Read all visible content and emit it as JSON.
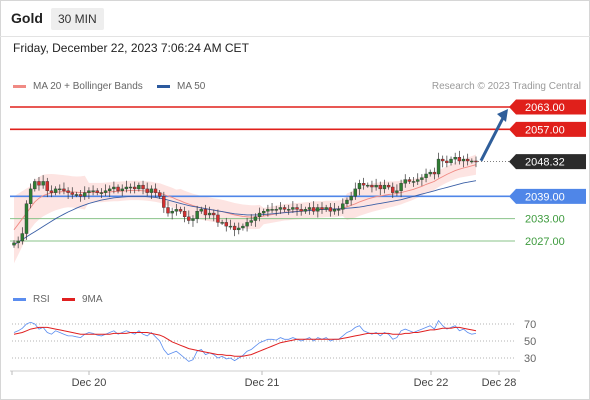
{
  "header": {
    "instrument": "Gold",
    "timeframe": "30 MIN",
    "datetime": "Friday, December 22, 2023 7:06:24 AM CET"
  },
  "legend": {
    "items": [
      {
        "label": "MA 20 + Bollinger Bands",
        "color": "#f08a84"
      },
      {
        "label": "MA 50",
        "color": "#2c5a9e"
      }
    ],
    "credit": "Research © 2023 Trading Central"
  },
  "colors": {
    "resistance": "#e0201b",
    "support": "#4f86e8",
    "target_support": "#3e9b3e",
    "current": "#2b2b2b",
    "bullish_candle": "#2e7d32",
    "bearish_candle": "#d32f2f",
    "arrow": "#2f5e9a"
  },
  "chart_data": [
    {
      "type": "candlestick",
      "x_axis_labels": [
        "Dec 20",
        "Dec 21",
        "Dec 22",
        "Dec 28"
      ],
      "ylim": [
        2024,
        2065
      ],
      "levels": [
        {
          "value": 2063.0,
          "label": "2063.00",
          "kind": "resistance"
        },
        {
          "value": 2057.0,
          "label": "2057.00",
          "kind": "resistance"
        },
        {
          "value": 2048.32,
          "label": "2048.32",
          "kind": "current"
        },
        {
          "value": 2039.0,
          "label": "2039.00",
          "kind": "support"
        },
        {
          "value": 2033.0,
          "label": "2033.00",
          "kind": "target"
        },
        {
          "value": 2027.0,
          "label": "2027.00",
          "kind": "target"
        }
      ],
      "closes": [
        2026.5,
        2027,
        2029,
        2037,
        2041,
        2043,
        2042,
        2043,
        2040.5,
        2040,
        2041,
        2041,
        2040.5,
        2040,
        2039.5,
        2039.5,
        2039,
        2040,
        2040.5,
        2040.5,
        2040,
        2040,
        2040.5,
        2041,
        2041.5,
        2040.5,
        2041,
        2041.5,
        2041.5,
        2041,
        2042,
        2041,
        2040,
        2041,
        2040,
        2039,
        2036,
        2034.5,
        2035,
        2035.5,
        2035,
        2033.5,
        2032.5,
        2033,
        2035,
        2035.5,
        2034,
        2034.5,
        2034,
        2032,
        2032,
        2031,
        2031,
        2030,
        2030.5,
        2031,
        2032,
        2032.5,
        2033.5,
        2034.5,
        2035,
        2035.5,
        2035.5,
        2035.5,
        2036,
        2035.5,
        2035.5,
        2036,
        2035.5,
        2035,
        2035.5,
        2036,
        2035,
        2036,
        2035.5,
        2036,
        2035,
        2035.5,
        2035.5,
        2037,
        2038,
        2039,
        2041,
        2042.5,
        2042,
        2042,
        2041.5,
        2042,
        2041,
        2042,
        2041.5,
        2040,
        2040.5,
        2042.5,
        2043.5,
        2043,
        2043,
        2043.5,
        2044,
        2045,
        2045.5,
        2045,
        2049,
        2048.5,
        2048,
        2049,
        2049.5,
        2048.5,
        2049,
        2048.5,
        2048.5,
        2048.3
      ],
      "series": [
        {
          "name": "MA 20 + Bollinger Bands",
          "role": "ma20",
          "values": [
            2030,
            2031.5,
            2033,
            2034.5,
            2036,
            2037.5,
            2038.5,
            2039.2,
            2039.6,
            2039.9,
            2040.1,
            2040.2,
            2040.3,
            2040.3,
            2040.2,
            2040.1,
            2040,
            2040,
            2040,
            2040,
            2040,
            2040,
            2040.1,
            2040.2,
            2040.3,
            2040.3,
            2040.4,
            2040.5,
            2040.6,
            2040.6,
            2040.6,
            2040.5,
            2040.4,
            2040.3,
            2040.1,
            2039.9,
            2039.5,
            2039.1,
            2038.7,
            2038.2,
            2037.8,
            2037.3,
            2036.9,
            2036.5,
            2036.2,
            2035.9,
            2035.7,
            2035.5,
            2035.3,
            2035.1,
            2034.9,
            2034.6,
            2034.3,
            2034,
            2033.8,
            2033.6,
            2033.5,
            2033.4,
            2033.4,
            2033.5,
            2033.7,
            2033.9,
            2034.1,
            2034.3,
            2034.5,
            2034.7,
            2034.8,
            2034.9,
            2035,
            2035.1,
            2035.2,
            2035.3,
            2035.4,
            2035.5,
            2035.5,
            2035.6,
            2035.6,
            2035.6,
            2035.7,
            2035.9,
            2036.2,
            2036.6,
            2037,
            2037.5,
            2037.9,
            2038.3,
            2038.6,
            2038.9,
            2039.1,
            2039.3,
            2039.5,
            2039.6,
            2039.8,
            2040,
            2040.3,
            2040.6,
            2040.9,
            2041.3,
            2041.7,
            2042.2,
            2042.6,
            2043,
            2043.7,
            2044.3,
            2044.9,
            2045.4,
            2045.9,
            2046.3,
            2046.6,
            2046.9,
            2047.2,
            2047.5
          ]
        },
        {
          "name": "MA 50",
          "role": "ma50",
          "values": [
            2026,
            2026.7,
            2027.4,
            2028.1,
            2028.8,
            2029.5,
            2030.2,
            2030.9,
            2031.6,
            2032.3,
            2033,
            2033.6,
            2034.2,
            2034.8,
            2035.3,
            2035.8,
            2036.3,
            2036.7,
            2037.1,
            2037.4,
            2037.7,
            2038,
            2038.2,
            2038.4,
            2038.6,
            2038.7,
            2038.8,
            2038.9,
            2039,
            2039,
            2039,
            2039,
            2038.9,
            2038.8,
            2038.7,
            2038.5,
            2038.3,
            2038,
            2037.7,
            2037.4,
            2037.1,
            2036.8,
            2036.5,
            2036.3,
            2036.1,
            2035.9,
            2035.7,
            2035.5,
            2035.3,
            2035.1,
            2034.9,
            2034.7,
            2034.5,
            2034.3,
            2034.2,
            2034.1,
            2034,
            2034,
            2034,
            2034,
            2034.1,
            2034.2,
            2034.3,
            2034.4,
            2034.5,
            2034.6,
            2034.7,
            2034.8,
            2034.9,
            2035,
            2035.1,
            2035.2,
            2035.3,
            2035.4,
            2035.5,
            2035.5,
            2035.6,
            2035.6,
            2035.6,
            2035.7,
            2035.8,
            2035.9,
            2036,
            2036.1,
            2036.3,
            2036.5,
            2036.7,
            2036.9,
            2037.1,
            2037.3,
            2037.5,
            2037.7,
            2037.9,
            2038.1,
            2038.4,
            2038.7,
            2039,
            2039.3,
            2039.6,
            2039.9,
            2040.2,
            2040.5,
            2040.8,
            2041.1,
            2041.4,
            2041.7,
            2042,
            2042.3,
            2042.6,
            2042.8,
            2043,
            2043.2
          ]
        }
      ],
      "forecast_arrow": {
        "from": 2048.32,
        "to": 2063.0
      }
    },
    {
      "type": "line",
      "ylim": [
        20,
        80
      ],
      "y_ticks": [
        "70",
        "50",
        "30"
      ],
      "y_tick_values": [
        70,
        50,
        30
      ],
      "series": [
        {
          "name": "RSI",
          "color": "#5b8def",
          "values": [
            60,
            62,
            65,
            70,
            72,
            70,
            64,
            66,
            60,
            58,
            62,
            60,
            58,
            56,
            56,
            55,
            54,
            58,
            60,
            59,
            57,
            56,
            58,
            60,
            62,
            58,
            60,
            62,
            60,
            58,
            62,
            58,
            56,
            60,
            55,
            50,
            40,
            34,
            36,
            38,
            34,
            30,
            26,
            28,
            38,
            40,
            34,
            36,
            34,
            30,
            32,
            29,
            30,
            27,
            30,
            33,
            38,
            40,
            44,
            48,
            50,
            52,
            52,
            51,
            54,
            52,
            52,
            54,
            52,
            50,
            52,
            54,
            50,
            54,
            52,
            54,
            50,
            52,
            52,
            56,
            60,
            62,
            66,
            68,
            62,
            60,
            58,
            60,
            56,
            60,
            58,
            52,
            54,
            62,
            64,
            62,
            60,
            62,
            64,
            66,
            68,
            64,
            74,
            68,
            64,
            66,
            68,
            62,
            64,
            60,
            58,
            59
          ]
        },
        {
          "name": "9MA",
          "color": "#e02020",
          "values": [
            58,
            59,
            60,
            62,
            64,
            65,
            66,
            66,
            66,
            65,
            64,
            63,
            62,
            61,
            60,
            59,
            58,
            58,
            58,
            58,
            58,
            58,
            58,
            58,
            59,
            59,
            59,
            59,
            60,
            60,
            60,
            60,
            60,
            59,
            58,
            57,
            55,
            52,
            49,
            47,
            45,
            43,
            41,
            40,
            39,
            38,
            37,
            36,
            35,
            34,
            34,
            33,
            33,
            32,
            32,
            32,
            33,
            34,
            36,
            38,
            40,
            42,
            44,
            46,
            48,
            49,
            50,
            51,
            52,
            52,
            52,
            52,
            52,
            52,
            52,
            52,
            52,
            52,
            52,
            53,
            54,
            55,
            56,
            57,
            58,
            59,
            59,
            59,
            59,
            59,
            59,
            58,
            58,
            58,
            59,
            59,
            60,
            60,
            61,
            62,
            63,
            63,
            64,
            65,
            65,
            65,
            66,
            66,
            65,
            64,
            63,
            62
          ]
        }
      ]
    }
  ]
}
